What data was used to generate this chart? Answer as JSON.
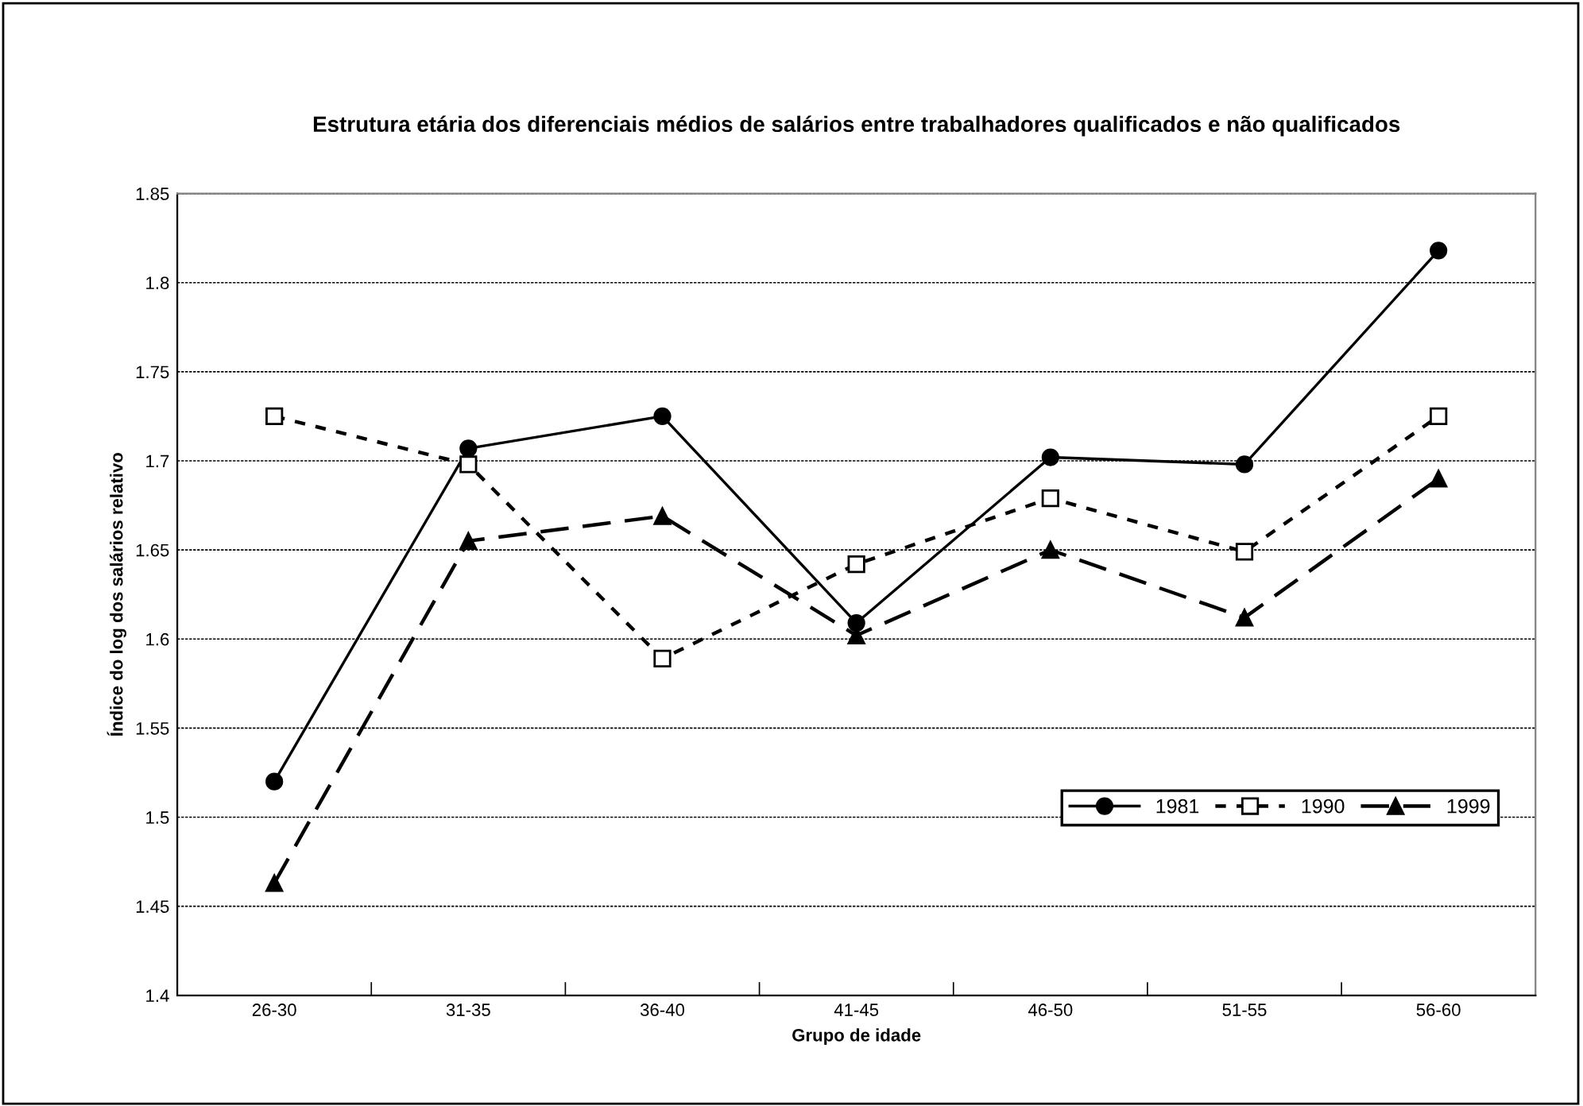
{
  "chart_data": {
    "type": "line",
    "title": "Estrutura etária dos diferenciais médios de salários entre trabalhadores qualificados e não qualificados",
    "xlabel": "Grupo de idade",
    "ylabel": "Índice do log dos salários relativo",
    "categories": [
      "26-30",
      "31-35",
      "36-40",
      "41-45",
      "46-50",
      "51-55",
      "56-60"
    ],
    "series": [
      {
        "name": "1981",
        "color": "#000000",
        "marker": "circle",
        "line_style": "solid",
        "values": [
          1.52,
          1.707,
          1.725,
          1.609,
          1.702,
          1.698,
          1.818
        ]
      },
      {
        "name": "1990",
        "color": "#000000",
        "marker": "square",
        "line_style": "dotted",
        "values": [
          1.725,
          1.698,
          1.589,
          1.642,
          1.679,
          1.649,
          1.725
        ]
      },
      {
        "name": "1999",
        "color": "#000000",
        "marker": "triangle",
        "line_style": "dashed",
        "values": [
          1.463,
          1.655,
          1.669,
          1.602,
          1.65,
          1.612,
          1.69
        ]
      }
    ],
    "ylim": [
      1.4,
      1.85
    ],
    "yticks": [
      1.4,
      1.45,
      1.5,
      1.55,
      1.6,
      1.65,
      1.7,
      1.75,
      1.8,
      1.85
    ],
    "grid": "y",
    "legend": "bottom right"
  }
}
